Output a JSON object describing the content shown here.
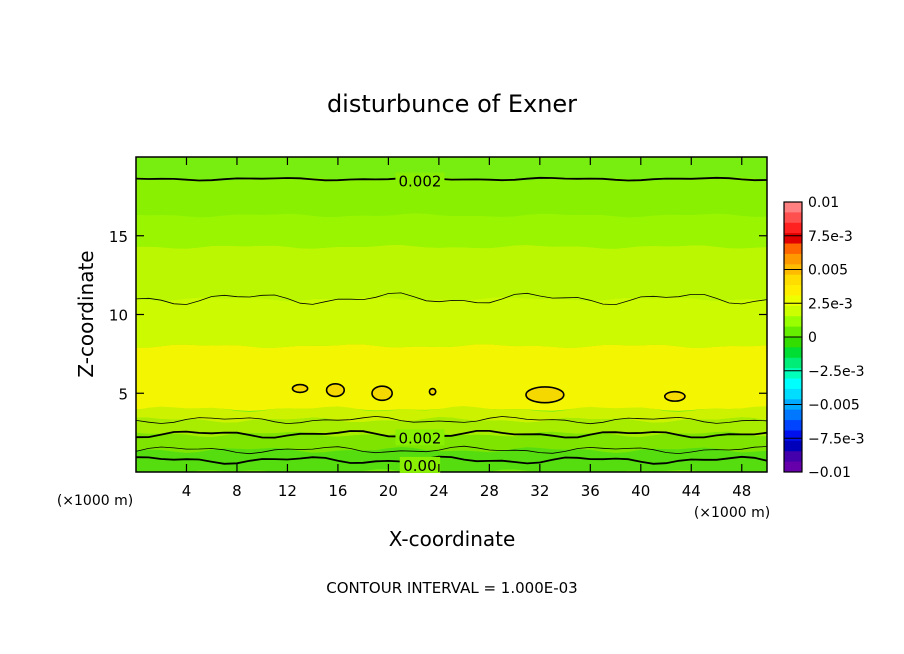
{
  "chart_data": {
    "type": "heatmap",
    "title": "disturbunce of Exner",
    "xlabel": "X-coordinate",
    "ylabel": "Z-coordinate",
    "x_unit": "(×1000 m)",
    "y_unit": "(×1000 m)",
    "footer": "CONTOUR INTERVAL = 1.000E-03",
    "xlim": [
      0,
      50
    ],
    "ylim": [
      0,
      20
    ],
    "x_ticks": [
      4,
      8,
      12,
      16,
      20,
      24,
      28,
      32,
      36,
      40,
      44,
      48
    ],
    "y_ticks": [
      5,
      10,
      15
    ],
    "contour_labels": [
      {
        "text": "0.002",
        "x": 22.5,
        "z": 18.5
      },
      {
        "text": "0.002",
        "x": 22.5,
        "z": 2.2
      },
      {
        "text": "0.00",
        "x": 22.5,
        "z": 0.45
      }
    ],
    "colorbar": {
      "labels": [
        "0.01",
        "7.5e-3",
        "0.005",
        "2.5e-3",
        "0",
        "−2.5e-3",
        "−0.005",
        "−7.5e-3",
        "−0.01"
      ],
      "min": -0.01,
      "max": 0.01,
      "colors": [
        "#ff8080",
        "#ff5050",
        "#ff2020",
        "#e00000",
        "#ff6600",
        "#ff9900",
        "#ffbb00",
        "#ffdd00",
        "#ffee00",
        "#eeff00",
        "#ccff00",
        "#99ff00",
        "#66ee00",
        "#33dd00",
        "#00dd33",
        "#00ee77",
        "#00ffbb",
        "#00ffff",
        "#00ddff",
        "#00aaff",
        "#0077ff",
        "#0044ff",
        "#0011ee",
        "#0000bb",
        "#4400aa",
        "#6600aa"
      ]
    },
    "field_bands": [
      {
        "z": [
          19.9,
          18.6
        ],
        "value": 0.0018,
        "color": "#78ee10"
      },
      {
        "z": [
          18.6,
          16.3
        ],
        "value": 0.0021,
        "color": "#88f000"
      },
      {
        "z": [
          16.3,
          14.3
        ],
        "value": 0.0025,
        "color": "#99f500"
      },
      {
        "z": [
          14.3,
          11.0
        ],
        "value": 0.003,
        "color": "#bbf700"
      },
      {
        "z": [
          11.0,
          8.0
        ],
        "value": 0.0035,
        "color": "#ccfa00"
      },
      {
        "z": [
          8.0,
          4.0
        ],
        "value": 0.004,
        "color": "#f4f500"
      },
      {
        "z": [
          4.0,
          3.3
        ],
        "value": 0.003,
        "color": "#ccf200"
      },
      {
        "z": [
          3.3,
          2.4
        ],
        "value": 0.0025,
        "color": "#a8ec00"
      },
      {
        "z": [
          2.4,
          1.4
        ],
        "value": 0.002,
        "color": "#7ee400"
      },
      {
        "z": [
          1.4,
          0.0
        ],
        "value": 0.0005,
        "color": "#55dd10"
      }
    ],
    "max_cells": [
      {
        "x": 13.0,
        "z": 5.3,
        "rx": 0.6,
        "rz": 0.25
      },
      {
        "x": 15.8,
        "z": 5.2,
        "rx": 0.7,
        "rz": 0.4
      },
      {
        "x": 19.5,
        "z": 5.0,
        "rx": 0.8,
        "rz": 0.45
      },
      {
        "x": 23.5,
        "z": 5.1,
        "rx": 0.25,
        "rz": 0.2
      },
      {
        "x": 32.4,
        "z": 4.9,
        "rx": 1.5,
        "rz": 0.5
      },
      {
        "x": 42.7,
        "z": 4.8,
        "rx": 0.8,
        "rz": 0.3
      }
    ]
  }
}
